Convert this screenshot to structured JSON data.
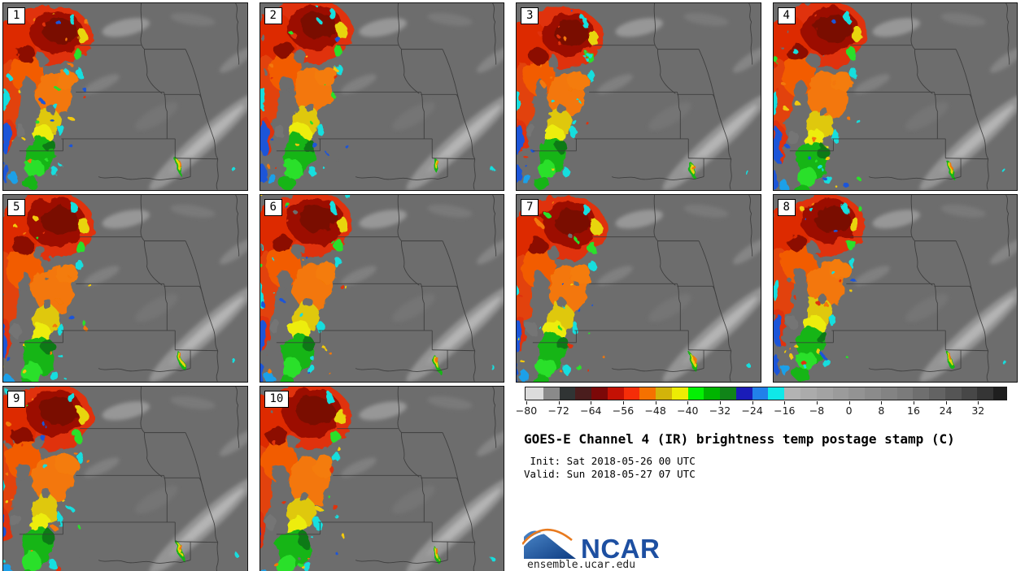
{
  "chart_data": {
    "type": "heatmap",
    "title": "GOES-E Channel 4 (IR) brightness temp postage stamp (C)",
    "init_label": " Init: Sat 2018-05-26 00 UTC",
    "valid_label": "Valid: Sun 2018-05-27 07 UTC",
    "panel_count": 10,
    "members": [
      "1",
      "2",
      "3",
      "4",
      "5",
      "6",
      "7",
      "8",
      "9",
      "10"
    ],
    "legend_position": "bottom-right",
    "colorbar": {
      "units": "C",
      "range_c": [
        -80.4,
        39.2
      ],
      "tick_values": [
        -80,
        -72,
        -64,
        -56,
        -48,
        -40,
        -32,
        -24,
        -16,
        -8,
        0,
        8,
        16,
        24,
        32
      ],
      "tick_labels": [
        "−80",
        "−72",
        "−64",
        "−56",
        "−48",
        "−40",
        "−32",
        "−24",
        "−16",
        "−8",
        "0",
        "8",
        "16",
        "24",
        "32"
      ],
      "segments": [
        {
          "from": -80.4,
          "to": -76,
          "color": "#dcdcdc"
        },
        {
          "from": -76,
          "to": -72,
          "color": "#8a8a8a"
        },
        {
          "from": -72,
          "to": -68,
          "color": "#303434"
        },
        {
          "from": -68,
          "to": -64,
          "color": "#4a1d1d"
        },
        {
          "from": -64,
          "to": -60,
          "color": "#7c0808"
        },
        {
          "from": -60,
          "to": -56,
          "color": "#c41104"
        },
        {
          "from": -56,
          "to": -52,
          "color": "#f52d08"
        },
        {
          "from": -52,
          "to": -48,
          "color": "#f57100"
        },
        {
          "from": -48,
          "to": -44,
          "color": "#d2b40a"
        },
        {
          "from": -44,
          "to": -40,
          "color": "#ecec04"
        },
        {
          "from": -40,
          "to": -36,
          "color": "#04f004"
        },
        {
          "from": -36,
          "to": -32,
          "color": "#00b400"
        },
        {
          "from": -32,
          "to": -28,
          "color": "#108418"
        },
        {
          "from": -28,
          "to": -24,
          "color": "#1a1cb9"
        },
        {
          "from": -24,
          "to": -20,
          "color": "#2180ea"
        },
        {
          "from": -20,
          "to": -16,
          "color": "#0fe8e8"
        },
        {
          "from": -16,
          "to": -12,
          "color": "#b3b3b3"
        },
        {
          "from": -12,
          "to": -8,
          "color": "#ababab"
        },
        {
          "from": -8,
          "to": -4,
          "color": "#a3a3a3"
        },
        {
          "from": -4,
          "to": 0,
          "color": "#9b9b9b"
        },
        {
          "from": 0,
          "to": 4,
          "color": "#939393"
        },
        {
          "from": 4,
          "to": 8,
          "color": "#8b8b8b"
        },
        {
          "from": 8,
          "to": 12,
          "color": "#838383"
        },
        {
          "from": 12,
          "to": 16,
          "color": "#7b7b7b"
        },
        {
          "from": 16,
          "to": 20,
          "color": "#6f6f6f"
        },
        {
          "from": 20,
          "to": 24,
          "color": "#636363"
        },
        {
          "from": 24,
          "to": 28,
          "color": "#555555"
        },
        {
          "from": 28,
          "to": 32,
          "color": "#474747"
        },
        {
          "from": 32,
          "to": 36,
          "color": "#353535"
        },
        {
          "from": 36,
          "to": 39.2,
          "color": "#1f1f1f"
        }
      ]
    }
  },
  "map": {
    "background": "#6d6d6d",
    "state_border_color": "#3a3a3a",
    "panel_border_color": "#111111"
  },
  "branding": {
    "logo_text": "NCAR",
    "site": "ensemble.ucar.edu",
    "logo_blue": "#1d4fa1",
    "logo_orange": "#e87a1e"
  }
}
